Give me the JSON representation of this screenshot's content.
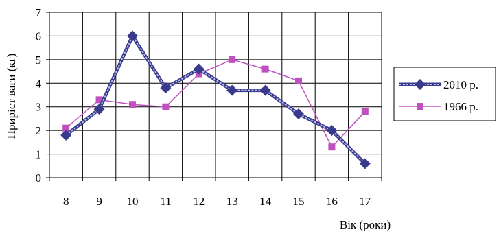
{
  "chart_data": {
    "type": "line",
    "title": "",
    "xlabel": "Вік (роки)",
    "ylabel": "Приріст ваги (кг)",
    "x": [
      8,
      9,
      10,
      11,
      12,
      13,
      14,
      15,
      16,
      17
    ],
    "ylim": [
      0,
      7
    ],
    "yticks": [
      0,
      1,
      2,
      3,
      4,
      5,
      6,
      7
    ],
    "grid": true,
    "legend_position": "right",
    "series": [
      {
        "name": "2010 р.",
        "values": [
          1.8,
          2.9,
          6.0,
          3.8,
          4.6,
          3.7,
          3.7,
          2.7,
          2.0,
          0.6
        ],
        "color": "#3a3a8c",
        "line_color": "#7d86c7",
        "marker": "diamond"
      },
      {
        "name": "1966 р.",
        "values": [
          2.1,
          3.3,
          3.1,
          3.0,
          4.4,
          5.0,
          4.6,
          4.1,
          1.3,
          2.8
        ],
        "color": "#c050c0",
        "line_color": "#c050c0",
        "marker": "square"
      }
    ]
  }
}
